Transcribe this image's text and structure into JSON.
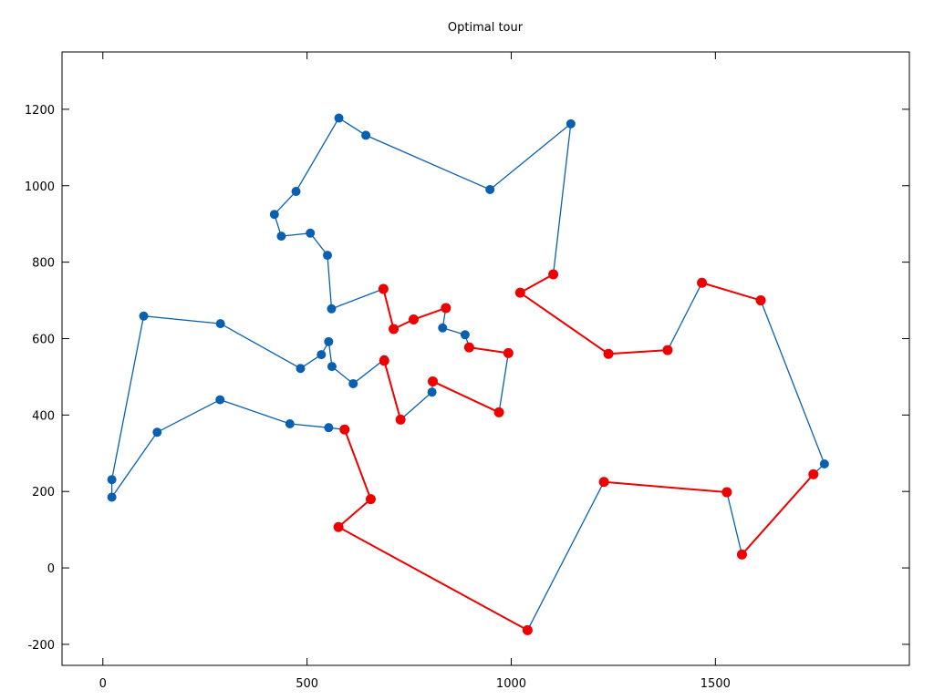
{
  "chart_data": {
    "type": "line",
    "title": "Optimal tour",
    "xlabel": "",
    "ylabel": "",
    "xlim": [
      -100,
      1975
    ],
    "ylim": [
      -255,
      1350
    ],
    "x_ticks": [
      0,
      500,
      1000,
      1500
    ],
    "y_ticks": [
      -200,
      0,
      200,
      400,
      600,
      800,
      1000,
      1200
    ],
    "grid": false,
    "legend": "none",
    "colors": {
      "tour": "#0a60b0",
      "highlight": "#ee0000"
    },
    "series": [
      {
        "color": "tour",
        "points": [
          [
            1040,
            -163
          ],
          [
            1227,
            225
          ],
          [
            1528,
            198
          ],
          [
            1565,
            35
          ],
          [
            1740,
            245
          ],
          [
            1767,
            272
          ],
          [
            1611,
            700
          ],
          [
            1467,
            746
          ],
          [
            1383,
            570
          ],
          [
            1238,
            560
          ],
          [
            1022,
            720
          ],
          [
            1103,
            768
          ],
          [
            1146,
            1162
          ],
          [
            948,
            990
          ],
          [
            644,
            1132
          ],
          [
            578,
            1177
          ],
          [
            473,
            985
          ],
          [
            420,
            925
          ],
          [
            437,
            868
          ],
          [
            508,
            876
          ],
          [
            550,
            818
          ],
          [
            560,
            678
          ],
          [
            687,
            730
          ],
          [
            712,
            625
          ],
          [
            761,
            650
          ],
          [
            840,
            680
          ],
          [
            832,
            628
          ],
          [
            887,
            610
          ],
          [
            897,
            577
          ],
          [
            993,
            562
          ],
          [
            970,
            407
          ],
          [
            808,
            488
          ],
          [
            806,
            460
          ],
          [
            729,
            388
          ],
          [
            689,
            542
          ],
          [
            689,
            545
          ],
          [
            613,
            482
          ],
          [
            561,
            527
          ],
          [
            553,
            592
          ],
          [
            535,
            558
          ],
          [
            484,
            522
          ],
          [
            288,
            639
          ],
          [
            100,
            659
          ],
          [
            22,
            231
          ],
          [
            22,
            185
          ],
          [
            133,
            355
          ],
          [
            287,
            440
          ],
          [
            458,
            377
          ],
          [
            553,
            367
          ],
          [
            592,
            362
          ],
          [
            656,
            180
          ],
          [
            577,
            107
          ],
          [
            1040,
            -163
          ]
        ]
      },
      {
        "color": "highlight",
        "segments": [
          [
            [
              577,
              107
            ],
            [
              1040,
              -163
            ]
          ],
          [
            [
              577,
              107
            ],
            [
              656,
              180
            ]
          ],
          [
            [
              656,
              180
            ],
            [
              592,
              362
            ]
          ],
          [
            [
              1528,
              198
            ],
            [
              1227,
              225
            ]
          ],
          [
            [
              1565,
              35
            ],
            [
              1740,
              245
            ]
          ],
          [
            [
              1238,
              560
            ],
            [
              1383,
              570
            ]
          ],
          [
            [
              1238,
              560
            ],
            [
              1022,
              720
            ]
          ],
          [
            [
              1022,
              720
            ],
            [
              1103,
              768
            ]
          ],
          [
            [
              1467,
              746
            ],
            [
              1611,
              700
            ]
          ],
          [
            [
              687,
              730
            ],
            [
              712,
              625
            ]
          ],
          [
            [
              712,
              625
            ],
            [
              761,
              650
            ]
          ],
          [
            [
              761,
              650
            ],
            [
              840,
              680
            ]
          ],
          [
            [
              897,
              577
            ],
            [
              993,
              562
            ]
          ],
          [
            [
              970,
              407
            ],
            [
              808,
              488
            ]
          ],
          [
            [
              729,
              388
            ],
            [
              689,
              542
            ]
          ]
        ],
        "points": [
          [
            577,
            107
          ],
          [
            656,
            180
          ],
          [
            592,
            362
          ],
          [
            1040,
            -163
          ],
          [
            1227,
            225
          ],
          [
            1528,
            198
          ],
          [
            1565,
            35
          ],
          [
            1740,
            245
          ],
          [
            1238,
            560
          ],
          [
            1383,
            570
          ],
          [
            1022,
            720
          ],
          [
            1103,
            768
          ],
          [
            1467,
            746
          ],
          [
            1611,
            700
          ],
          [
            687,
            730
          ],
          [
            712,
            625
          ],
          [
            761,
            650
          ],
          [
            840,
            680
          ],
          [
            897,
            577
          ],
          [
            993,
            562
          ],
          [
            970,
            407
          ],
          [
            808,
            488
          ],
          [
            729,
            388
          ],
          [
            689,
            542
          ]
        ]
      }
    ]
  }
}
